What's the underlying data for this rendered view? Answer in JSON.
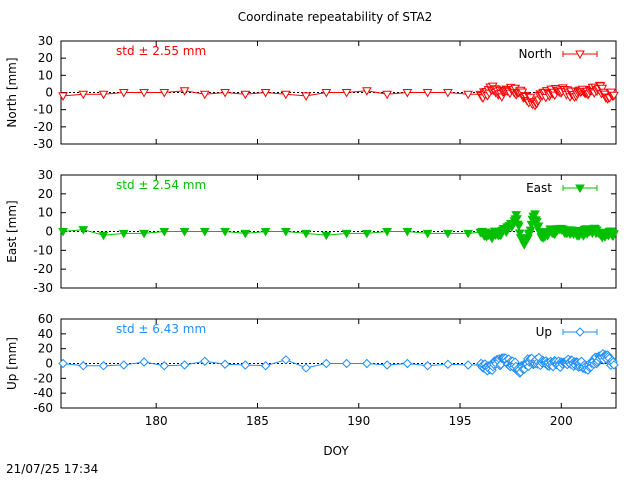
{
  "page": {
    "title": "Coordinate repeatability of STA2",
    "xlabel": "DOY",
    "timestamp": "21/07/25 17:34"
  },
  "colors": {
    "north": "#ff0000",
    "east": "#00c000",
    "up": "#1f8fff",
    "frame": "#000000"
  },
  "chart_data": [
    {
      "type": "line",
      "title": "Coordinate repeatability of STA2",
      "xlabel": "",
      "ylabel": "North [mm]",
      "xlim": [
        175.3,
        202.7
      ],
      "ylim": [
        -30,
        30
      ],
      "yticks": [
        -30,
        -20,
        -10,
        0,
        10,
        20,
        30
      ],
      "xticks": [
        180,
        185,
        190,
        195,
        200
      ],
      "show_xtick_labels": false,
      "annotation": "std ± 2.55 mm",
      "legend": "top-right",
      "marker": "triangle-down-open",
      "color": "#ff0000",
      "series": [
        {
          "name": "North",
          "sparse_x": [
            175.4,
            176.4,
            177.4,
            178.4,
            179.4,
            180.4,
            181.4,
            182.4,
            183.4,
            184.4,
            185.4,
            186.4,
            187.4,
            188.4,
            189.4,
            190.4,
            191.4,
            192.4,
            193.4,
            194.4,
            195.4
          ],
          "sparse_y": [
            -2,
            -1,
            -1,
            0,
            0,
            0,
            1,
            -1,
            0,
            -1,
            0,
            -1,
            -2,
            0,
            0,
            1,
            -1,
            0,
            0,
            0,
            -1
          ],
          "dense_x_start": 196.0,
          "dense_x_end": 202.6,
          "dense_keys": [
            [
              196.0,
              -2
            ],
            [
              196.4,
              0
            ],
            [
              196.6,
              3
            ],
            [
              197.0,
              -1
            ],
            [
              197.5,
              1
            ],
            [
              198.0,
              0
            ],
            [
              198.4,
              -4
            ],
            [
              198.7,
              -6
            ],
            [
              199.0,
              -2
            ],
            [
              199.5,
              0
            ],
            [
              200.0,
              1
            ],
            [
              200.5,
              -1
            ],
            [
              201.0,
              0
            ],
            [
              201.5,
              1
            ],
            [
              201.9,
              3
            ],
            [
              202.2,
              -3
            ],
            [
              202.6,
              0
            ]
          ],
          "dense_amp": 2.0,
          "dense_n": 150
        }
      ]
    },
    {
      "type": "line",
      "xlabel": "",
      "ylabel": "East [mm]",
      "xlim": [
        175.3,
        202.7
      ],
      "ylim": [
        -30,
        30
      ],
      "yticks": [
        -30,
        -20,
        -10,
        0,
        10,
        20,
        30
      ],
      "xticks": [
        180,
        185,
        190,
        195,
        200
      ],
      "show_xtick_labels": false,
      "annotation": "std ± 2.54 mm",
      "legend": "top-right",
      "marker": "triangle-down-filled",
      "color": "#00c000",
      "series": [
        {
          "name": "East",
          "sparse_x": [
            175.4,
            176.4,
            177.4,
            178.4,
            179.4,
            180.4,
            181.4,
            182.4,
            183.4,
            184.4,
            185.4,
            186.4,
            187.4,
            188.4,
            189.4,
            190.4,
            191.4,
            192.4,
            193.4,
            194.4,
            195.4
          ],
          "sparse_y": [
            0,
            1,
            -2,
            -1,
            -1,
            0,
            0,
            0,
            0,
            -1,
            0,
            0,
            -1,
            -2,
            -1,
            -1,
            0,
            0,
            -1,
            -1,
            -1
          ],
          "dense_x_start": 196.0,
          "dense_x_end": 202.6,
          "dense_keys": [
            [
              196.0,
              -1
            ],
            [
              196.5,
              -2
            ],
            [
              197.0,
              -1
            ],
            [
              197.5,
              3
            ],
            [
              197.8,
              8
            ],
            [
              198.0,
              -3
            ],
            [
              198.2,
              -7
            ],
            [
              198.5,
              3
            ],
            [
              198.7,
              9
            ],
            [
              199.0,
              -2
            ],
            [
              199.5,
              0
            ],
            [
              200.0,
              1
            ],
            [
              200.5,
              0
            ],
            [
              201.0,
              -1
            ],
            [
              201.5,
              1
            ],
            [
              202.0,
              -2
            ],
            [
              202.6,
              -1
            ]
          ],
          "dense_amp": 1.8,
          "dense_n": 150
        }
      ]
    },
    {
      "type": "line",
      "xlabel": "DOY",
      "ylabel": "Up [mm]",
      "xlim": [
        175.3,
        202.7
      ],
      "ylim": [
        -60,
        60
      ],
      "yticks": [
        -60,
        -40,
        -20,
        0,
        20,
        40,
        60
      ],
      "xticks": [
        180,
        185,
        190,
        195,
        200
      ],
      "show_xtick_labels": true,
      "annotation": "std ± 6.43 mm",
      "legend": "top-right",
      "marker": "diamond-open",
      "color": "#1f8fff",
      "series": [
        {
          "name": "Up",
          "sparse_x": [
            175.4,
            176.4,
            177.4,
            178.4,
            179.4,
            180.4,
            181.4,
            182.4,
            183.4,
            184.4,
            185.4,
            186.4,
            187.4,
            188.4,
            189.4,
            190.4,
            191.4,
            192.4,
            193.4,
            194.4,
            195.4
          ],
          "sparse_y": [
            0,
            -3,
            -3,
            -2,
            2,
            -3,
            -2,
            3,
            -1,
            -2,
            -3,
            5,
            -6,
            0,
            0,
            0,
            -2,
            0,
            -3,
            -1,
            -2
          ],
          "dense_x_start": 196.0,
          "dense_x_end": 202.6,
          "dense_keys": [
            [
              196.0,
              -3
            ],
            [
              196.5,
              -6
            ],
            [
              197.0,
              3
            ],
            [
              197.5,
              0
            ],
            [
              198.0,
              -8
            ],
            [
              198.4,
              2
            ],
            [
              198.8,
              5
            ],
            [
              199.2,
              0
            ],
            [
              199.8,
              -2
            ],
            [
              200.3,
              3
            ],
            [
              200.8,
              0
            ],
            [
              201.3,
              -4
            ],
            [
              201.8,
              6
            ],
            [
              202.2,
              8
            ],
            [
              202.6,
              -2
            ]
          ],
          "dense_amp": 6.0,
          "dense_n": 170
        }
      ]
    }
  ]
}
